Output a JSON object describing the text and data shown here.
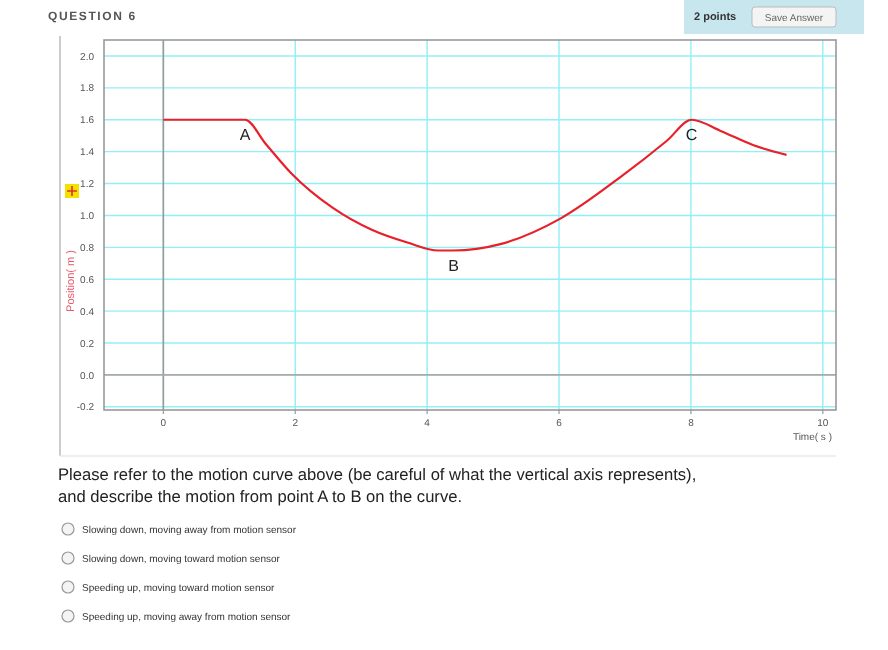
{
  "chart_data": {
    "type": "line",
    "title": "QUESTION 6",
    "xlabel": "Time( s )",
    "ylabel": "Position( m )",
    "x": [
      0,
      1.24,
      1.55,
      1.95,
      2.56,
      3.16,
      3.7,
      4.17,
      4.4,
      5.11,
      6.02,
      6.93,
      7.64,
      8.01,
      8.45,
      8.95,
      9.45
    ],
    "series": [
      {
        "color": "#e8202a",
        "values": [
          1.6,
          1.6,
          1.45,
          1.26,
          1.05,
          0.91,
          0.83,
          0.78,
          0.78,
          0.82,
          0.98,
          1.24,
          1.47,
          1.6,
          1.53,
          1.44,
          1.38
        ]
      }
    ],
    "xlim": [
      -0.9,
      10.2
    ],
    "ylim": [
      -0.22,
      2.1
    ],
    "xticks": [
      0,
      2,
      4,
      6,
      8,
      10
    ],
    "yticks": [
      {
        "value": -0.2,
        "label": "-0.2"
      },
      {
        "value": 0,
        "label": "0.0"
      },
      {
        "value": 0.2,
        "label": "0.2"
      },
      {
        "value": 0.4,
        "label": "0.4"
      },
      {
        "value": 0.6,
        "label": "0.6"
      },
      {
        "value": 0.8,
        "label": "0.8"
      },
      {
        "value": 1,
        "label": "1.0"
      },
      {
        "value": 1.2,
        "label": "1.2"
      },
      {
        "value": 1.4,
        "label": "1.4"
      },
      {
        "value": 1.6,
        "label": "1.6"
      },
      {
        "value": 1.8,
        "label": "1.8"
      },
      {
        "value": 2,
        "label": "2.0"
      }
    ],
    "grid": true,
    "marker": "none",
    "line_style": "solid",
    "annotations": [
      {
        "text": "A",
        "x": 1.24,
        "y": 1.6
      },
      {
        "text": "B",
        "x": 4.4,
        "y": 0.78
      },
      {
        "text": "C",
        "x": 8.01,
        "y": 1.6
      },
      "2 points",
      "Save Answer",
      "Please refer to the motion curve above (be careful of what the vertical axis represents), and describe the motion from point A to B on the curve.",
      "Slowing down, moving away from motion sensor",
      "Slowing down, moving toward motion sensor",
      "Speeding up, moving toward motion sensor",
      "Speeding up, moving away from motion sensor"
    ]
  }
}
